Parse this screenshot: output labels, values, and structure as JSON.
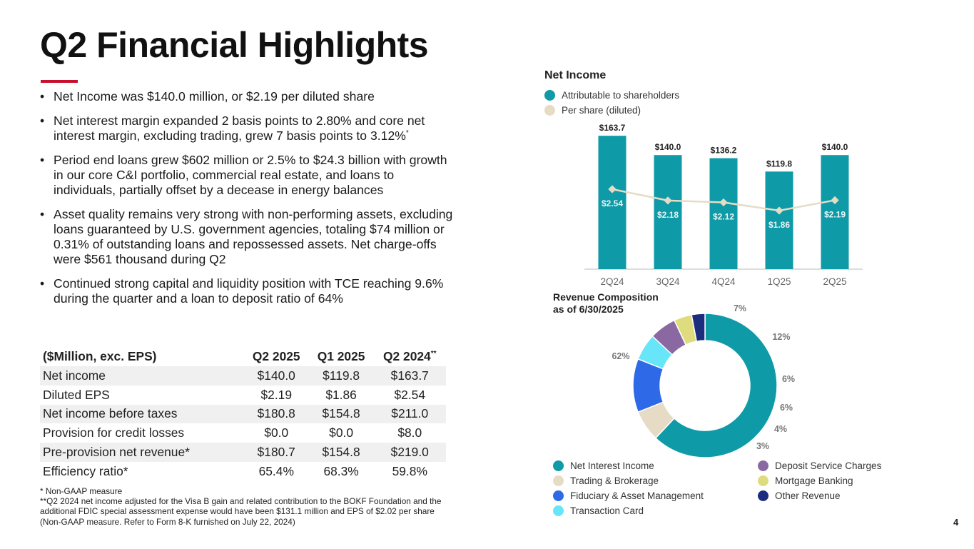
{
  "title": "Q2 Financial Highlights",
  "bullets": [
    {
      "text": "Net Income was $140.0 million, or $2.19 per diluted share",
      "sup": ""
    },
    {
      "text": "Net interest margin expanded 2 basis points to 2.80% and core net interest margin, excluding trading, grew 7 basis points to 3.12%",
      "sup": "*"
    },
    {
      "text": "Period end loans grew $602 million or 2.5% to $24.3 billion with growth in our core C&I portfolio, commercial real estate, and loans to individuals, partially offset by a decease in energy balances",
      "sup": ""
    },
    {
      "text": "Asset quality remains very strong with non-performing assets, excluding loans guaranteed by U.S. government agencies, totaling $74 million or 0.31% of outstanding loans and repossessed assets. Net charge-offs were $561 thousand during Q2",
      "sup": ""
    },
    {
      "text": "Continued strong capital and liquidity position with TCE reaching 9.6% during the quarter and a loan to deposit ratio of 64%",
      "sup": ""
    }
  ],
  "table": {
    "headers": [
      "($Million, exc. EPS)",
      "Q2 2025",
      "Q1 2025",
      "Q2 2024"
    ],
    "header_sup": "**",
    "rows": [
      [
        "Net income",
        "$140.0",
        "$119.8",
        "$163.7"
      ],
      [
        "Diluted EPS",
        "$2.19",
        "$1.86",
        "$2.54"
      ],
      [
        "Net income before taxes",
        "$180.8",
        "$154.8",
        "$211.0"
      ],
      [
        "Provision for credit losses",
        "$0.0",
        "$0.0",
        "$8.0"
      ],
      [
        "Pre-provision net revenue*",
        "$180.7",
        "$154.8",
        "$219.0"
      ],
      [
        "Efficiency ratio*",
        "65.4%",
        "68.3%",
        "59.8%"
      ]
    ]
  },
  "footnotes": [
    "*  Non-GAAP measure",
    "**Q2 2024 net income adjusted for the Visa B gain and related contribution to the BOKF Foundation and the additional FDIC special assessment expense would have been $131.1 million and EPS of $2.02 per share (Non-GAAP measure. Refer to Form 8-K furnished on July 22, 2024)"
  ],
  "page_number": "4",
  "colors": {
    "accent_red": "#c8102e",
    "teal": "#0e9aa7",
    "beige": "#e6dcc6"
  },
  "chart_data": [
    {
      "type": "bar",
      "title": "Net Income",
      "categories": [
        "2Q24",
        "3Q24",
        "4Q24",
        "1Q25",
        "2Q25"
      ],
      "series": [
        {
          "name": "Attributable to shareholders",
          "kind": "bar",
          "color": "#0e9aa7",
          "values": [
            163.7,
            140.0,
            136.2,
            119.8,
            140.0
          ],
          "labels": [
            "$163.7",
            "$140.0",
            "$136.2",
            "$119.8",
            "$140.0"
          ]
        },
        {
          "name": "Per share (diluted)",
          "kind": "line",
          "color": "#e6dcc6",
          "values": [
            2.54,
            2.18,
            2.12,
            1.86,
            2.19
          ],
          "labels": [
            "$2.54",
            "$2.18",
            "$2.12",
            "$1.86",
            "$2.19"
          ]
        }
      ],
      "ylim": [
        0,
        170
      ],
      "y2lim": [
        0,
        4.4
      ],
      "xlabel": "",
      "ylabel": ""
    },
    {
      "type": "pie",
      "donut": true,
      "title": "Revenue Composition",
      "subtitle": "as of 6/30/2025",
      "slices": [
        {
          "label": "Net Interest Income",
          "value": 62,
          "text": "62%",
          "color": "#0e9aa7"
        },
        {
          "label": "Trading & Brokerage",
          "value": 7,
          "text": "7%",
          "color": "#e6dcc6"
        },
        {
          "label": "Fiduciary & Asset Management",
          "value": 12,
          "text": "12%",
          "color": "#2e69e8"
        },
        {
          "label": "Transaction Card",
          "value": 6,
          "text": "6%",
          "color": "#66e6f8"
        },
        {
          "label": "Deposit Service Charges",
          "value": 6,
          "text": "6%",
          "color": "#8a69a3"
        },
        {
          "label": "Mortgage Banking",
          "value": 4,
          "text": "4%",
          "color": "#dedc7e"
        },
        {
          "label": "Other Revenue",
          "value": 3,
          "text": "3%",
          "color": "#1d2d7d"
        }
      ]
    }
  ]
}
